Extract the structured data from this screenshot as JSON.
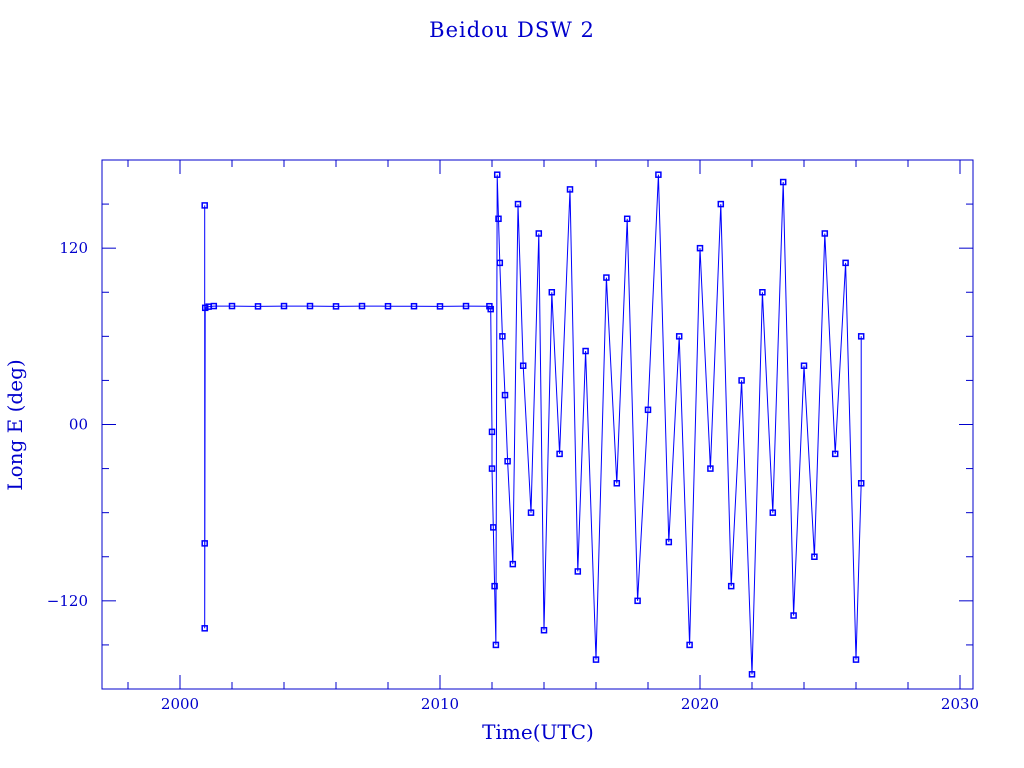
{
  "chart_data": {
    "type": "scatter",
    "title": "Beidou DSW 2",
    "xlabel": "Time(UTC)",
    "ylabel": "Long E (deg)",
    "xlim": [
      1997,
      2030.5
    ],
    "ylim": [
      -180,
      180
    ],
    "x_ticks": [
      {
        "value": 2000,
        "label": "2000"
      },
      {
        "value": 2010,
        "label": "2010"
      },
      {
        "value": 2020,
        "label": "2020"
      },
      {
        "value": 2030,
        "label": "2030"
      }
    ],
    "y_ticks": [
      {
        "value": 120,
        "label": "120"
      },
      {
        "value": 0,
        "label": "00"
      },
      {
        "value": -120,
        "label": "−120"
      }
    ],
    "grid": false,
    "legend": "none",
    "color": "#0000ff",
    "axis_color": "#0000cc",
    "series": [
      {
        "points": [
          [
            2000.95,
            149.1
          ],
          [
            2000.95,
            -80.9
          ],
          [
            2000.95,
            -138.7
          ],
          [
            2000.97,
            79.4
          ],
          [
            2001.1,
            80.2
          ],
          [
            2001.3,
            80.6
          ],
          [
            2002.0,
            80.6
          ],
          [
            2003.0,
            80.4
          ],
          [
            2004.0,
            80.6
          ],
          [
            2005.0,
            80.6
          ],
          [
            2006.0,
            80.4
          ],
          [
            2007.0,
            80.6
          ],
          [
            2008.0,
            80.5
          ],
          [
            2009.0,
            80.5
          ],
          [
            2010.0,
            80.4
          ],
          [
            2011.0,
            80.6
          ],
          [
            2011.9,
            80.5
          ],
          [
            2011.95,
            78.5
          ],
          [
            2012.0,
            -5.0
          ],
          [
            2012.0,
            -30.0
          ],
          [
            2012.05,
            -70.0
          ],
          [
            2012.1,
            -110.0
          ],
          [
            2012.15,
            -150.0
          ],
          [
            2012.2,
            170.0
          ],
          [
            2012.25,
            140.0
          ],
          [
            2012.3,
            110.0
          ],
          [
            2012.4,
            60.0
          ],
          [
            2012.5,
            20.0
          ],
          [
            2012.6,
            -25.0
          ],
          [
            2012.8,
            -95.0
          ],
          [
            2013.0,
            150.0
          ],
          [
            2013.2,
            40.0
          ],
          [
            2013.5,
            -60.0
          ],
          [
            2013.8,
            130.0
          ],
          [
            2014.0,
            -140.0
          ],
          [
            2014.3,
            90.0
          ],
          [
            2014.6,
            -20.0
          ],
          [
            2015.0,
            160.0
          ],
          [
            2015.3,
            -100.0
          ],
          [
            2015.6,
            50.0
          ],
          [
            2016.0,
            -160.0
          ],
          [
            2016.4,
            100.0
          ],
          [
            2016.8,
            -40.0
          ],
          [
            2017.2,
            140.0
          ],
          [
            2017.6,
            -120.0
          ],
          [
            2018.0,
            10.0
          ],
          [
            2018.4,
            170.0
          ],
          [
            2018.8,
            -80.0
          ],
          [
            2019.2,
            60.0
          ],
          [
            2019.6,
            -150.0
          ],
          [
            2020.0,
            120.0
          ],
          [
            2020.4,
            -30.0
          ],
          [
            2020.8,
            150.0
          ],
          [
            2021.2,
            -110.0
          ],
          [
            2021.6,
            30.0
          ],
          [
            2022.0,
            -170.0
          ],
          [
            2022.4,
            90.0
          ],
          [
            2022.8,
            -60.0
          ],
          [
            2023.2,
            165.0
          ],
          [
            2023.6,
            -130.0
          ],
          [
            2024.0,
            40.0
          ],
          [
            2024.4,
            -90.0
          ],
          [
            2024.8,
            130.0
          ],
          [
            2025.2,
            -20.0
          ],
          [
            2025.6,
            110.0
          ],
          [
            2026.0,
            -160.0
          ],
          [
            2026.2,
            -40.0
          ],
          [
            2026.2,
            60.0
          ]
        ]
      }
    ]
  }
}
